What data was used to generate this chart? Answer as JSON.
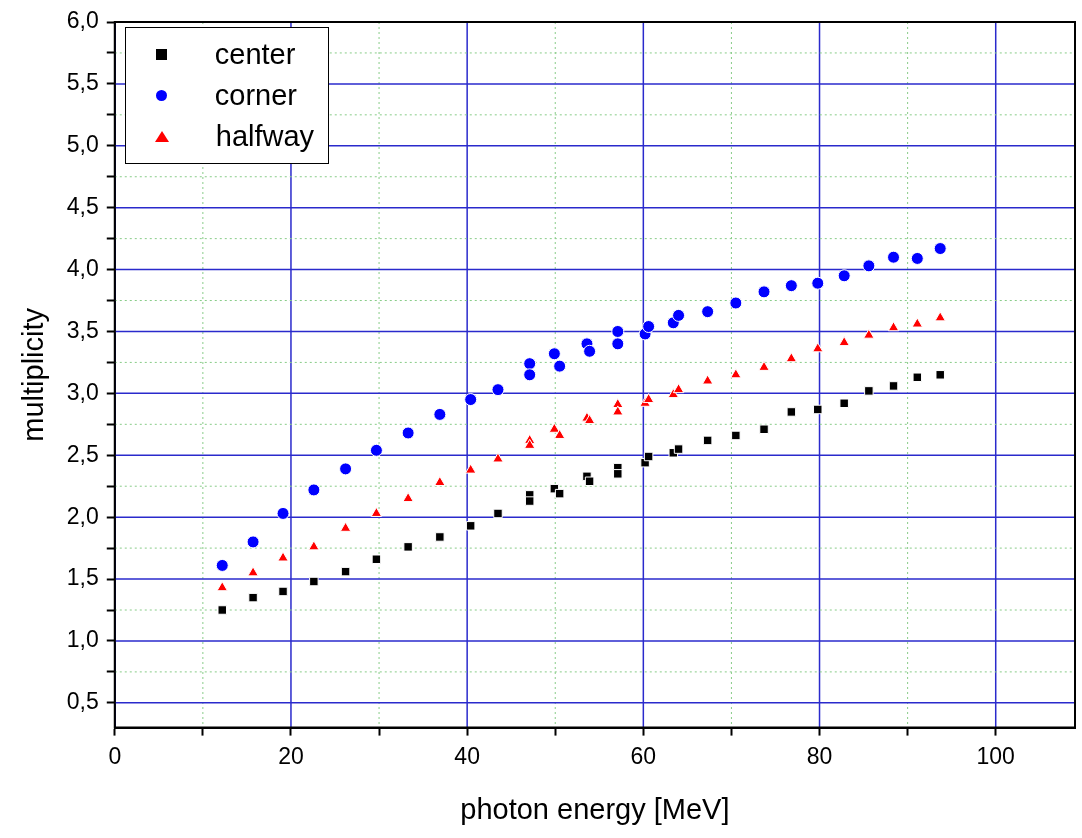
{
  "chart_data": {
    "type": "scatter",
    "xlabel": "photon energy [MeV]",
    "ylabel": "multiplicity",
    "xlim": [
      0,
      109
    ],
    "ylim": [
      0.3,
      6.0
    ],
    "xticks": [
      0,
      {
        "value": 10,
        "label": null
      },
      20,
      {
        "value": 30,
        "label": null
      },
      40,
      {
        "value": 50,
        "label": null
      },
      60,
      {
        "value": 70,
        "label": null
      },
      80,
      {
        "value": 90,
        "label": null
      },
      100
    ],
    "yticks": [
      {
        "value": 0.5,
        "label": "0,5"
      },
      {
        "value": 0.75,
        "label": null
      },
      {
        "value": 1.0,
        "label": "1,0"
      },
      {
        "value": 1.25,
        "label": null
      },
      {
        "value": 1.5,
        "label": "1,5"
      },
      {
        "value": 1.75,
        "label": null
      },
      {
        "value": 2.0,
        "label": "2,0"
      },
      {
        "value": 2.25,
        "label": null
      },
      {
        "value": 2.5,
        "label": "2,5"
      },
      {
        "value": 2.75,
        "label": null
      },
      {
        "value": 3.0,
        "label": "3,0"
      },
      {
        "value": 3.25,
        "label": null
      },
      {
        "value": 3.5,
        "label": "3,5"
      },
      {
        "value": 3.75,
        "label": null
      },
      {
        "value": 4.0,
        "label": "4,0"
      },
      {
        "value": 4.25,
        "label": null
      },
      {
        "value": 4.5,
        "label": "4,5"
      },
      {
        "value": 4.75,
        "label": null
      },
      {
        "value": 5.0,
        "label": "5,0"
      },
      {
        "value": 5.25,
        "label": null
      },
      {
        "value": 5.5,
        "label": "5,5"
      },
      {
        "value": 5.75,
        "label": null
      },
      {
        "value": 6.0,
        "label": "6,0"
      }
    ],
    "grid": true,
    "legend": "top left",
    "series": [
      {
        "name": "center",
        "color": "#000000",
        "marker": "square",
        "x": [
          12.2,
          15.7,
          19.1,
          22.6,
          26.2,
          29.7,
          33.3,
          36.9,
          40.4,
          43.5,
          47.1,
          47.1,
          49.9,
          50.5,
          53.6,
          53.9,
          57.1,
          57.1,
          60.2,
          60.6,
          63.4,
          64.0,
          67.3,
          70.5,
          73.7,
          76.8,
          79.8,
          82.8,
          85.6,
          88.4,
          91.1,
          93.7
        ],
        "values": [
          1.25,
          1.35,
          1.4,
          1.48,
          1.56,
          1.66,
          1.76,
          1.84,
          1.93,
          2.03,
          2.18,
          2.13,
          2.23,
          2.19,
          2.33,
          2.29,
          2.4,
          2.35,
          2.44,
          2.49,
          2.52,
          2.55,
          2.62,
          2.66,
          2.71,
          2.85,
          2.87,
          2.92,
          3.02,
          3.06,
          3.13,
          3.15
        ]
      },
      {
        "name": "corner",
        "color": "#0000ff",
        "marker": "circle",
        "x": [
          12.2,
          15.7,
          19.1,
          22.6,
          26.2,
          29.7,
          33.3,
          36.9,
          40.4,
          43.5,
          47.1,
          47.1,
          49.9,
          50.5,
          53.6,
          53.9,
          57.1,
          57.1,
          60.2,
          60.6,
          63.4,
          64.0,
          67.3,
          70.5,
          73.7,
          76.8,
          79.8,
          82.8,
          85.6,
          88.4,
          91.1,
          93.7
        ],
        "values": [
          1.61,
          1.8,
          2.03,
          2.22,
          2.39,
          2.54,
          2.68,
          2.83,
          2.95,
          3.03,
          3.24,
          3.15,
          3.32,
          3.22,
          3.4,
          3.34,
          3.5,
          3.4,
          3.48,
          3.54,
          3.57,
          3.63,
          3.66,
          3.73,
          3.82,
          3.87,
          3.89,
          3.95,
          4.03,
          4.1,
          4.09,
          4.17
        ]
      },
      {
        "name": "halfway",
        "color": "#ff0000",
        "marker": "triangle",
        "x": [
          12.2,
          15.7,
          19.1,
          22.6,
          26.2,
          29.7,
          33.3,
          36.9,
          40.4,
          43.5,
          47.1,
          47.1,
          49.9,
          50.5,
          53.6,
          53.9,
          57.1,
          57.1,
          60.2,
          60.6,
          63.4,
          64.0,
          67.3,
          70.5,
          73.7,
          76.8,
          79.8,
          82.8,
          85.6,
          88.4,
          91.1,
          93.7
        ],
        "values": [
          1.43,
          1.55,
          1.67,
          1.76,
          1.91,
          2.03,
          2.15,
          2.28,
          2.38,
          2.47,
          2.62,
          2.58,
          2.71,
          2.66,
          2.8,
          2.78,
          2.91,
          2.85,
          2.92,
          2.95,
          2.99,
          3.03,
          3.1,
          3.15,
          3.21,
          3.28,
          3.36,
          3.41,
          3.47,
          3.53,
          3.56,
          3.61
        ]
      }
    ]
  }
}
